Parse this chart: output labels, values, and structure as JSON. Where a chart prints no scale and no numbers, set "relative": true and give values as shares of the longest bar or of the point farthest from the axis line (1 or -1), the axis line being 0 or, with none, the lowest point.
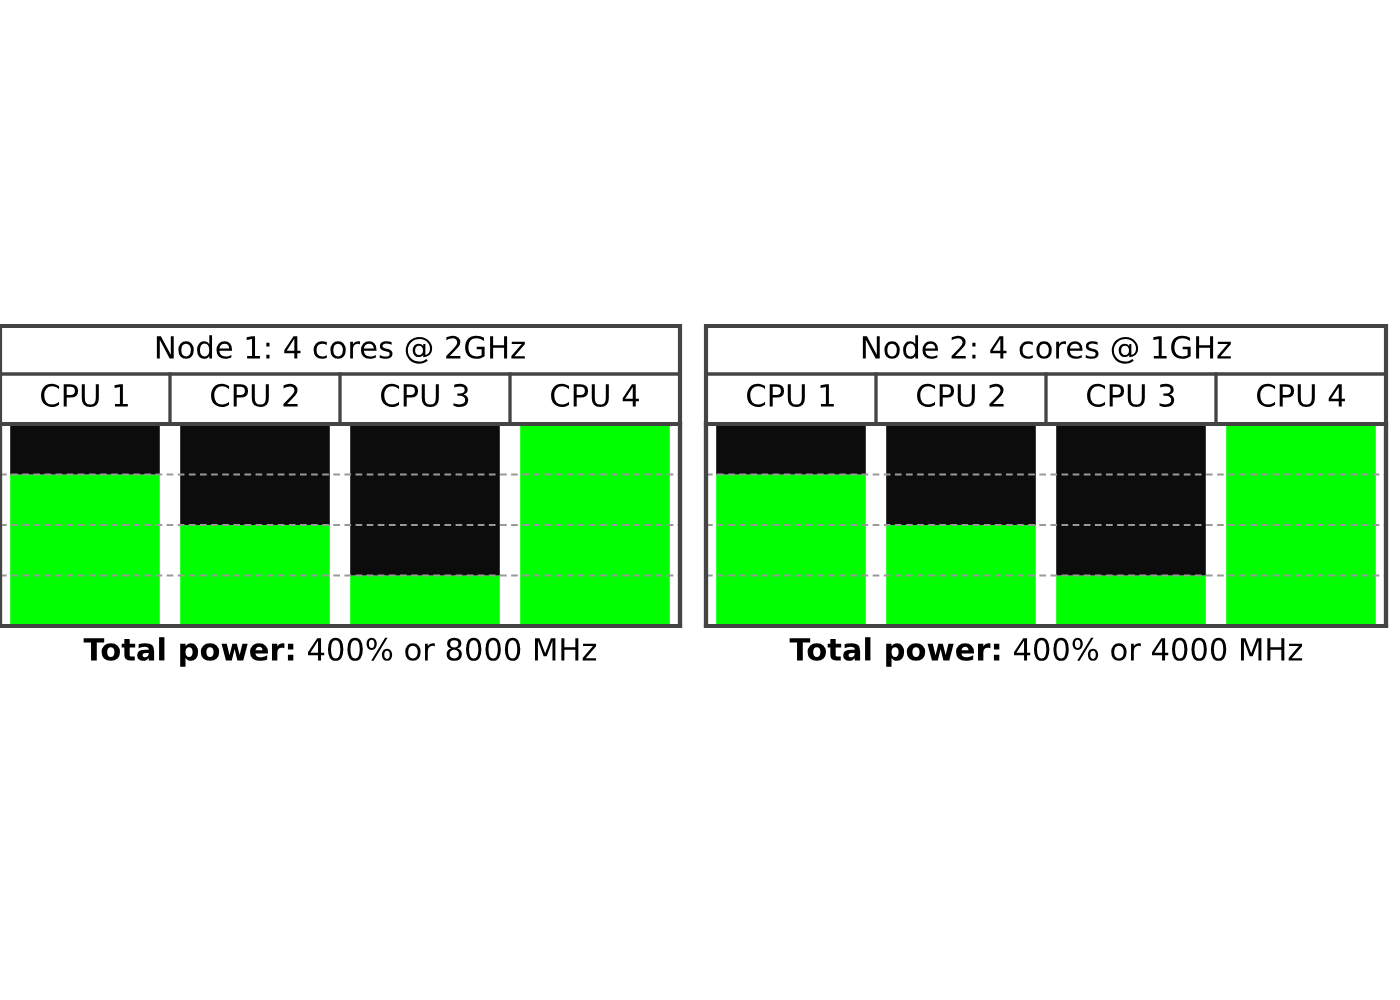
{
  "chart_data": [
    {
      "type": "bar",
      "title": "Node 1: 4 cores @ 2GHz",
      "categories": [
        "CPU 1",
        "CPU 2",
        "CPU 3",
        "CPU 4"
      ],
      "relative": true,
      "stacked": true,
      "grid": "y",
      "tick_labels": "x",
      "series": [
        {
          "color": "#00ff00",
          "values": [
            0.75,
            0.5,
            0.25,
            1
          ]
        },
        {
          "color": "#0c0c0c",
          "values": [
            0.25,
            0.5,
            0.75,
            0
          ]
        }
      ],
      "annotations": [
        "Total power:",
        "400% or 8000 MHz"
      ]
    },
    {
      "type": "bar",
      "title": "Node 2: 4 cores @ 1GHz",
      "categories": [
        "CPU 1",
        "CPU 2",
        "CPU 3",
        "CPU 4"
      ],
      "relative": true,
      "stacked": true,
      "grid": "y",
      "tick_labels": "x",
      "series": [
        {
          "color": "#00ff00",
          "values": [
            0.75,
            0.5,
            0.25,
            1
          ]
        },
        {
          "color": "#0c0c0c",
          "values": [
            0.25,
            0.5,
            0.75,
            0
          ]
        }
      ],
      "annotations": [
        "Total power:",
        "400% or 4000 MHz"
      ]
    }
  ]
}
